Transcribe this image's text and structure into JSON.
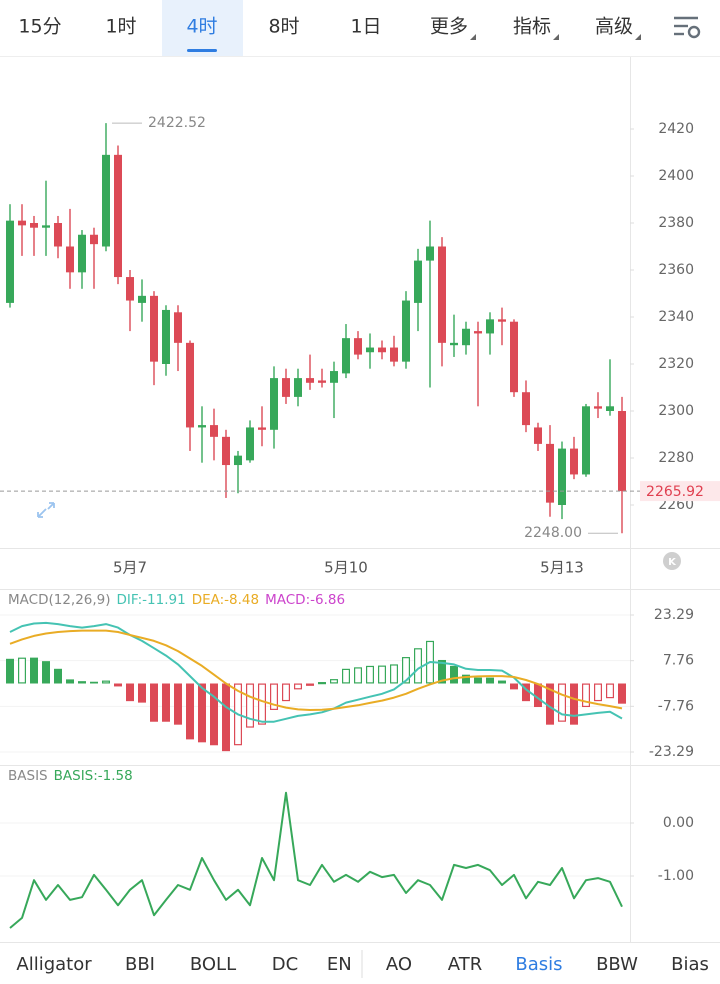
{
  "tabs": [
    "15分",
    "1时",
    "4时",
    "8时",
    "1日",
    "更多",
    "指标",
    "高级"
  ],
  "selected_tab": 2,
  "k_button": "K",
  "chart_data": [
    {
      "type": "candlestick",
      "categories": [
        null,
        null,
        null,
        null,
        null,
        null,
        null,
        null,
        null,
        null,
        "5月7",
        null,
        null,
        null,
        null,
        null,
        null,
        null,
        null,
        null,
        null,
        null,
        null,
        null,
        null,
        null,
        null,
        null,
        "5月10",
        null,
        null,
        null,
        null,
        null,
        null,
        null,
        null,
        null,
        null,
        null,
        null,
        null,
        null,
        null,
        null,
        null,
        "5月13",
        null,
        null,
        null,
        null,
        null
      ],
      "open": [
        2346,
        2381,
        2380,
        2378,
        2380,
        2370,
        2359,
        2375,
        2370,
        2409,
        2357,
        2346,
        2349,
        2320,
        2342,
        2329,
        2293,
        2294,
        2289,
        2277,
        2279,
        2293,
        2292,
        2314,
        2306,
        2314,
        2313,
        2312,
        2316,
        2331,
        2325,
        2327,
        2327,
        2321,
        2346,
        2364,
        2370,
        2328,
        2328,
        2334,
        2333,
        2339,
        2338,
        2308,
        2293,
        2286,
        2260,
        2284,
        2273,
        2302,
        2300,
        2300
      ],
      "high": [
        2388,
        2388,
        2383,
        2398,
        2383,
        2386,
        2377,
        2378,
        2422.52,
        2413,
        2360,
        2356,
        2351,
        2345,
        2345,
        2330,
        2302,
        2301,
        2292,
        2283,
        2296,
        2302,
        2319,
        2318,
        2318,
        2324,
        2318,
        2321,
        2337,
        2334,
        2333,
        2330,
        2332,
        2351,
        2369,
        2381,
        2374,
        2341,
        2338,
        2338,
        2342,
        2344,
        2339,
        2313,
        2295,
        2294,
        2287,
        2289,
        2303,
        2308,
        2322,
        2306
      ],
      "low": [
        2344,
        2366,
        2366,
        2366,
        2365,
        2352,
        2352,
        2352,
        2368,
        2354,
        2334,
        2338,
        2311,
        2315,
        2317,
        2283,
        2278,
        2279,
        2263,
        2265,
        2278,
        2285,
        2284,
        2303,
        2302,
        2309,
        2310,
        2297,
        2314,
        2322,
        2318,
        2322,
        2319,
        2318,
        2334,
        2310,
        2319,
        2323,
        2324,
        2302,
        2324,
        2328,
        2306,
        2291,
        2283,
        2255,
        2254,
        2271,
        2272,
        2297,
        2298,
        2248
      ],
      "close": [
        2381,
        2379,
        2378,
        2379,
        2370,
        2359,
        2375,
        2371,
        2409,
        2357,
        2347,
        2349,
        2321,
        2343,
        2329,
        2293,
        2294,
        2289,
        2277,
        2281,
        2293,
        2292,
        2314,
        2306,
        2314,
        2312,
        2312,
        2317,
        2331,
        2324,
        2327,
        2325,
        2321,
        2347,
        2364,
        2370,
        2329,
        2329,
        2335,
        2333,
        2339,
        2338,
        2308,
        2294,
        2286,
        2261,
        2284,
        2273,
        2302,
        2301,
        2302,
        2265.92
      ],
      "up_color": "#37a85a",
      "down_color": "#dc4a56",
      "ylim": [
        2241.7,
        2450.64
      ],
      "yticks": [
        2260,
        2280,
        2300,
        2320,
        2340,
        2360,
        2380,
        2400,
        2420
      ],
      "grid": false,
      "last_price": 2265.92,
      "annotations": [
        {
          "value": 2422.52,
          "label": "2422.52"
        },
        {
          "value": 2248,
          "label": "2248.00"
        }
      ]
    },
    {
      "type": "macd",
      "title": "MACD(12,26,9)",
      "series": [
        {
          "label": "DIF:-11.91",
          "kind": "line",
          "color": "#45c3b3",
          "values": [
            17.5,
            19.5,
            20.4,
            20.6,
            20.2,
            19.5,
            19.0,
            19.5,
            20.2,
            19.0,
            16.5,
            14.5,
            12,
            9.5,
            6.5,
            2.5,
            -1.5,
            -4.5,
            -8,
            -10.5,
            -12,
            -13,
            -13,
            -12,
            -11,
            -10.5,
            -9.8,
            -8.5,
            -6.5,
            -5.5,
            -4.5,
            -3.5,
            -2,
            1,
            5,
            7.3,
            7,
            6.5,
            5,
            4.6,
            4.6,
            4.4,
            2,
            -2,
            -5,
            -8,
            -10.5,
            -11,
            -10.5,
            -10,
            -9.6,
            -11.91
          ]
        },
        {
          "label": "DEA:-8.48",
          "kind": "line",
          "color": "#e9ac25",
          "values": [
            13.5,
            15,
            16.2,
            17,
            17.5,
            17.8,
            18,
            18,
            18,
            17.5,
            16.5,
            15.5,
            14.5,
            13,
            11,
            8.5,
            6,
            3,
            0,
            -2.5,
            -4.5,
            -6,
            -7.2,
            -8.2,
            -8.8,
            -9,
            -8.9,
            -8.6,
            -8,
            -7.4,
            -6.6,
            -5.8,
            -4.8,
            -3.5,
            -1.8,
            -0.3,
            1,
            1.8,
            2.2,
            2.4,
            2.5,
            2.5,
            2.2,
            1.2,
            -0.2,
            -2,
            -3.8,
            -5.2,
            -6.2,
            -7,
            -7.7,
            -8.48
          ]
        },
        {
          "label": "MACD:-6.86",
          "kind": "bar",
          "color": "#cc44cc",
          "up_color": "#37a85a",
          "down_color": "#dc4a56",
          "values": [
            8.4,
            8.8,
            8.8,
            7.6,
            5,
            1.4,
            0.8,
            0.6,
            1.0,
            -1.0,
            -6,
            -6.5,
            -13,
            -13,
            -14,
            -19,
            -20,
            -21,
            -23,
            -21,
            -15,
            -14,
            -9,
            -6,
            -2,
            -0.8,
            0.5,
            1.5,
            5,
            5.5,
            6,
            6.1,
            6.5,
            9,
            12,
            14.5,
            8,
            6,
            3,
            2,
            2,
            1,
            -2,
            -6,
            -8,
            -14,
            -13,
            -14,
            -8,
            -6,
            -5,
            -6.86
          ]
        }
      ],
      "ylim": [
        -27.71,
        31.79
      ],
      "yticks": [
        -23.29,
        -7.76,
        7.76,
        23.29
      ],
      "grid": true
    },
    {
      "type": "line",
      "title": "BASIS",
      "series": [
        {
          "label": "BASIS:-1.58",
          "kind": "line",
          "color": "#37a85a",
          "values": [
            -1.98,
            -1.79,
            -1.08,
            -1.45,
            -1.17,
            -1.45,
            -1.4,
            -0.98,
            -1.26,
            -1.55,
            -1.26,
            -1.08,
            -1.74,
            -1.45,
            -1.17,
            -1.26,
            -0.66,
            -1.08,
            -1.45,
            -1.26,
            -1.55,
            -0.66,
            -1.08,
            0.57,
            -1.08,
            -1.17,
            -0.79,
            -1.11,
            -0.98,
            -1.11,
            -0.92,
            -1.02,
            -0.98,
            -1.32,
            -1.08,
            -1.17,
            -1.45,
            -0.79,
            -0.85,
            -0.79,
            -0.89,
            -1.17,
            -0.98,
            -1.42,
            -1.11,
            -1.17,
            -0.85,
            -1.42,
            -1.08,
            -1.04,
            -1.11,
            -1.58
          ]
        }
      ],
      "ylim": [
        -2.245,
        1.075
      ],
      "yticks": [
        {
          "value": -1,
          "label": "-1.00"
        },
        {
          "value": 0,
          "label": "0.00"
        }
      ],
      "grid": true
    }
  ],
  "indicators": [
    "Alligator",
    "BBI",
    "BOLL",
    "DC",
    "ENE",
    "AO",
    "ATR",
    "Basis",
    "BBW",
    "Bias"
  ],
  "selected_indicator": 7
}
